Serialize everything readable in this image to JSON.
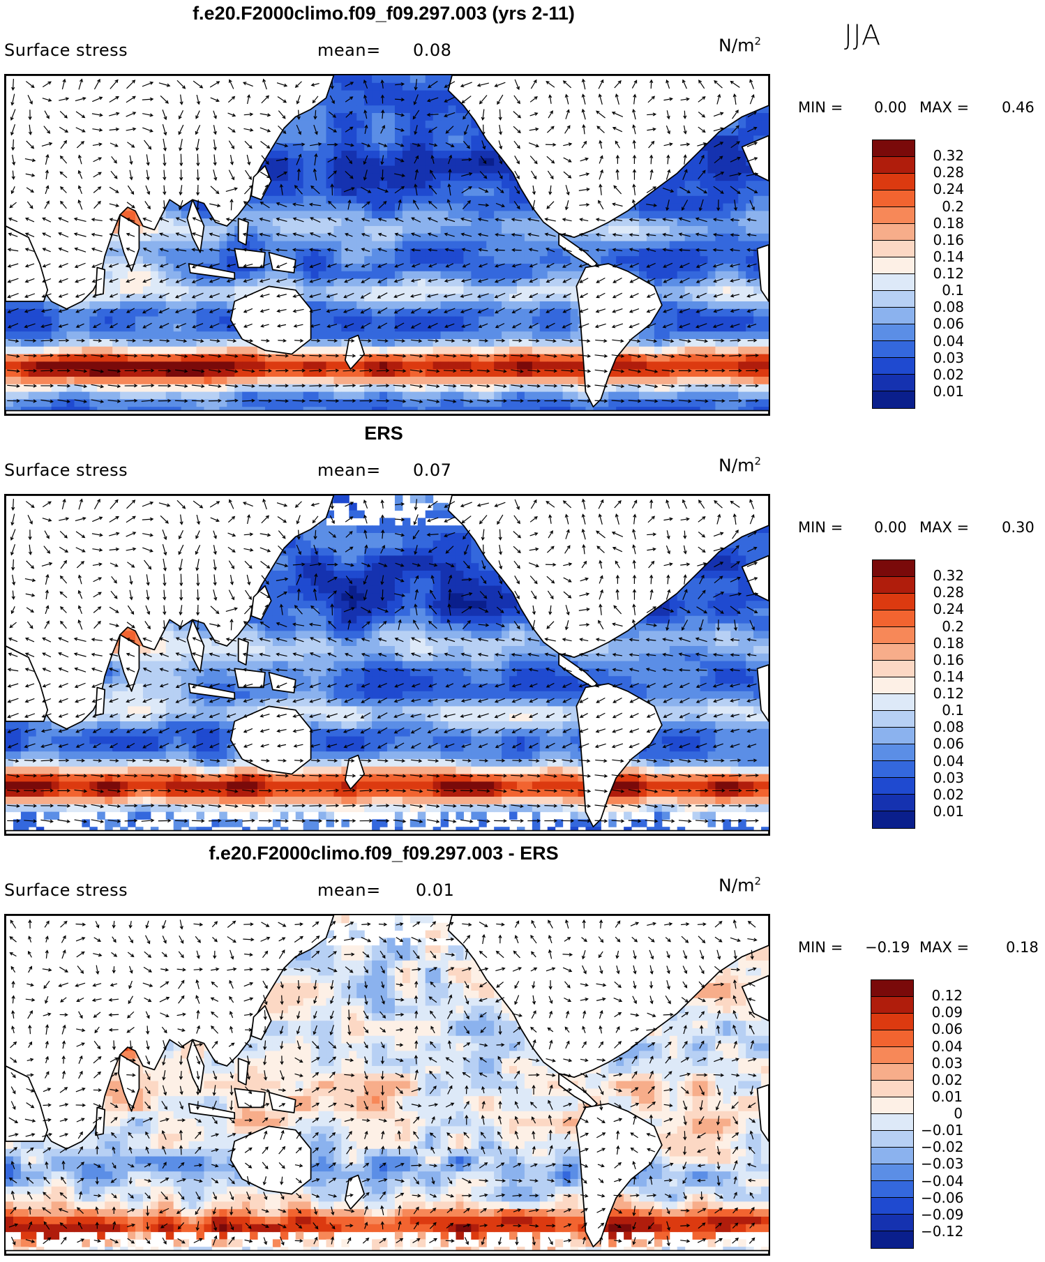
{
  "season": "JJA",
  "panels": [
    {
      "id": "model",
      "title": "f.e20.F2000climo.f09_f09.297.003 (yrs 2-11)",
      "variable": "Surface stress",
      "mean_label": "mean=",
      "mean_value": "0.08",
      "units_base": "N/m",
      "units_exp": "2",
      "min_label": "MIN =",
      "min_value": "0.00",
      "max_label": "MAX =",
      "max_value": "0.46",
      "colorbar_ticks": [
        "0.32",
        "0.28",
        "0.24",
        "0.2",
        "0.18",
        "0.16",
        "0.14",
        "0.12",
        "0.1",
        "0.08",
        "0.06",
        "0.04",
        "0.03",
        "0.02",
        "0.01"
      ],
      "colors": [
        "#7a0a0a",
        "#b01d0c",
        "#dc3a10",
        "#f26430",
        "#f78858",
        "#f7ad8a",
        "#fcd8c4",
        "#fdf0e6",
        "#dde9f8",
        "#b7d0f4",
        "#8bb2ee",
        "#5b8ee6",
        "#3468dd",
        "#1f4ad0",
        "#1532b0",
        "#0a1f8c"
      ],
      "field_mode": "abs",
      "masked": false
    },
    {
      "id": "obs",
      "title": "ERS",
      "variable": "Surface stress",
      "mean_label": "mean=",
      "mean_value": "0.07",
      "units_base": "N/m",
      "units_exp": "2",
      "min_label": "MIN =",
      "min_value": "0.00",
      "max_label": "MAX =",
      "max_value": "0.30",
      "colorbar_ticks": [
        "0.32",
        "0.28",
        "0.24",
        "0.2",
        "0.18",
        "0.16",
        "0.14",
        "0.12",
        "0.1",
        "0.08",
        "0.06",
        "0.04",
        "0.03",
        "0.02",
        "0.01"
      ],
      "colors": [
        "#7a0a0a",
        "#b01d0c",
        "#dc3a10",
        "#f26430",
        "#f78858",
        "#f7ad8a",
        "#fcd8c4",
        "#fdf0e6",
        "#dde9f8",
        "#b7d0f4",
        "#8bb2ee",
        "#5b8ee6",
        "#3468dd",
        "#1f4ad0",
        "#1532b0",
        "#0a1f8c"
      ],
      "field_mode": "abs",
      "masked": true
    },
    {
      "id": "diff",
      "title": "f.e20.F2000climo.f09_f09.297.003 - ERS",
      "variable": "Surface stress",
      "mean_label": "mean=",
      "mean_value": "0.01",
      "units_base": "N/m",
      "units_exp": "2",
      "min_label": "MIN =",
      "min_value": "−0.19",
      "max_label": "MAX =",
      "max_value": "0.18",
      "colorbar_ticks": [
        "0.12",
        "0.09",
        "0.06",
        "0.04",
        "0.03",
        "0.02",
        "0.01",
        "0",
        "−0.01",
        "−0.02",
        "−0.03",
        "−0.04",
        "−0.06",
        "−0.09",
        "−0.12"
      ],
      "colors": [
        "#7a0a0a",
        "#b01d0c",
        "#dc3a10",
        "#f26430",
        "#f78858",
        "#f7ad8a",
        "#fcd8c4",
        "#fdf0e6",
        "#dde9f8",
        "#b7d0f4",
        "#8bb2ee",
        "#5b8ee6",
        "#3468dd",
        "#1f4ad0",
        "#1532b0",
        "#0a1f8c"
      ],
      "field_mode": "diff",
      "masked": true
    }
  ]
}
